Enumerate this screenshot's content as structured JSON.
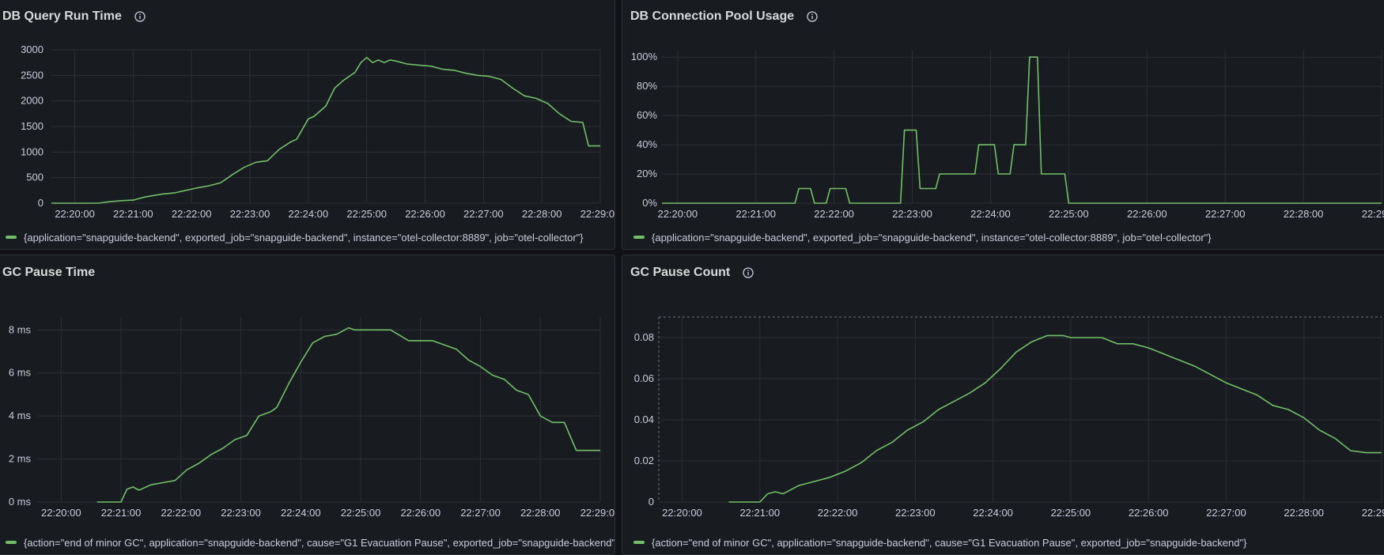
{
  "theme": {
    "background": "#111217",
    "panel_background": "#181b1f",
    "grid_color": "#2c3036",
    "series_color": "#73bf69",
    "text_color": "#ccccdc"
  },
  "x_ticks": [
    "22:20:00",
    "22:21:00",
    "22:22:00",
    "22:23:00",
    "22:24:00",
    "22:25:00",
    "22:26:00",
    "22:27:00",
    "22:28:00",
    "22:29:00"
  ],
  "panels": [
    {
      "title": "DB Query Run Time",
      "has_info_icon": true,
      "legend": "{application=\"snapguide-backend\", exported_job=\"snapguide-backend\", instance=\"otel-collector:8889\", job=\"otel-collector\"}"
    },
    {
      "title": "DB Connection Pool Usage",
      "has_info_icon": true,
      "legend": "{application=\"snapguide-backend\", exported_job=\"snapguide-backend\", instance=\"otel-collector:8889\", job=\"otel-collector\"}"
    },
    {
      "title": "GC Pause Time",
      "has_info_icon": false,
      "legend": "{action=\"end of minor GC\", application=\"snapguide-backend\", cause=\"G1 Evacuation Pause\", exported_job=\"snapguide-backend\"}"
    },
    {
      "title": "GC Pause Count",
      "has_info_icon": true,
      "legend": "{action=\"end of minor GC\", application=\"snapguide-backend\", cause=\"G1 Evacuation Pause\", exported_job=\"snapguide-backend\"}"
    }
  ],
  "chart_data": [
    {
      "type": "line",
      "title": "DB Query Run Time",
      "x_unit": "minutes after 22:20:00",
      "xlim": [
        -0.4,
        9
      ],
      "ylim": [
        0,
        3000
      ],
      "y_ticks": [
        "0",
        "500",
        "1000",
        "1500",
        "2000",
        "2500",
        "3000"
      ],
      "y_tick_values": [
        0,
        500,
        1000,
        1500,
        2000,
        2500,
        3000
      ],
      "grid": true,
      "series": [
        {
          "x": [
            -0.4,
            0.4,
            0.6,
            0.8,
            1.0,
            1.2,
            1.3,
            1.5,
            1.7,
            1.9,
            2.1,
            2.3,
            2.5,
            2.7,
            2.9,
            3.1,
            3.3,
            3.5,
            3.7,
            3.8,
            4.0,
            4.1,
            4.3,
            4.45,
            4.6,
            4.8,
            4.9,
            5.0,
            5.1,
            5.2,
            5.3,
            5.4,
            5.5,
            5.7,
            5.9,
            6.1,
            6.3,
            6.5,
            6.7,
            6.9,
            7.1,
            7.3,
            7.5,
            7.7,
            7.9,
            8.1,
            8.3,
            8.5,
            8.7,
            8.8,
            9.0
          ],
          "values": [
            0,
            0,
            30,
            50,
            60,
            120,
            140,
            180,
            200,
            250,
            300,
            340,
            400,
            560,
            700,
            800,
            830,
            1050,
            1200,
            1250,
            1650,
            1700,
            1900,
            2250,
            2400,
            2560,
            2750,
            2850,
            2750,
            2800,
            2750,
            2800,
            2780,
            2720,
            2700,
            2680,
            2620,
            2600,
            2540,
            2500,
            2480,
            2420,
            2250,
            2100,
            2050,
            1950,
            1750,
            1600,
            1580,
            1120,
            1120
          ]
        }
      ]
    },
    {
      "type": "line",
      "title": "DB Connection Pool Usage",
      "x_unit": "minutes after 22:20:00",
      "xlim": [
        -0.2,
        9
      ],
      "ylim": [
        0,
        105
      ],
      "y_ticks": [
        "0%",
        "20%",
        "40%",
        "60%",
        "80%",
        "100%"
      ],
      "y_tick_values": [
        0,
        20,
        40,
        60,
        80,
        100
      ],
      "grid": true,
      "series": [
        {
          "x": [
            -0.2,
            1.5,
            1.55,
            1.7,
            1.75,
            1.9,
            1.95,
            2.15,
            2.2,
            2.85,
            2.9,
            3.05,
            3.1,
            3.3,
            3.35,
            3.8,
            3.85,
            4.05,
            4.1,
            4.25,
            4.3,
            4.45,
            4.5,
            4.6,
            4.65,
            4.8,
            4.85,
            4.95,
            5.0,
            9.0
          ],
          "values": [
            0,
            0,
            10,
            10,
            0,
            0,
            10,
            10,
            0,
            0,
            50,
            50,
            10,
            10,
            20,
            20,
            40,
            40,
            20,
            20,
            40,
            40,
            100,
            100,
            20,
            20,
            20,
            20,
            0,
            0
          ]
        }
      ]
    },
    {
      "type": "line",
      "title": "GC Pause Time",
      "x_unit": "minutes after 22:20:00",
      "xlim": [
        -0.4,
        9
      ],
      "ylim": [
        0,
        8.6
      ],
      "y_ticks": [
        "0 ms",
        "2 ms",
        "4 ms",
        "6 ms",
        "8 ms"
      ],
      "y_tick_values": [
        0,
        2,
        4,
        6,
        8
      ],
      "grid": true,
      "series": [
        {
          "x": [
            0.6,
            1.0,
            1.1,
            1.2,
            1.3,
            1.5,
            1.7,
            1.9,
            2.1,
            2.3,
            2.5,
            2.7,
            2.9,
            3.1,
            3.3,
            3.5,
            3.6,
            3.8,
            4.0,
            4.2,
            4.4,
            4.6,
            4.8,
            4.9,
            5.0,
            5.1,
            5.3,
            5.5,
            5.8,
            6.0,
            6.2,
            6.4,
            6.6,
            6.8,
            7.0,
            7.2,
            7.4,
            7.6,
            7.8,
            8.0,
            8.2,
            8.4,
            8.6,
            8.8,
            9.0
          ],
          "values": [
            0,
            0,
            0.6,
            0.7,
            0.55,
            0.8,
            0.9,
            1.0,
            1.5,
            1.8,
            2.2,
            2.5,
            2.9,
            3.1,
            4.0,
            4.2,
            4.4,
            5.5,
            6.5,
            7.4,
            7.7,
            7.8,
            8.1,
            8.0,
            8.0,
            8.0,
            8.0,
            8.0,
            7.5,
            7.5,
            7.5,
            7.3,
            7.1,
            6.6,
            6.3,
            5.9,
            5.7,
            5.2,
            5.0,
            4.0,
            3.7,
            3.7,
            2.4,
            2.4,
            2.4
          ]
        }
      ]
    },
    {
      "type": "line",
      "title": "GC Pause Count",
      "x_unit": "minutes after 22:20:00",
      "xlim": [
        -0.3,
        9
      ],
      "ylim": [
        0,
        0.09
      ],
      "y_ticks": [
        "0",
        "0.02",
        "0.04",
        "0.06",
        "0.08"
      ],
      "y_tick_values": [
        0,
        0.02,
        0.04,
        0.06,
        0.08
      ],
      "grid": true,
      "series": [
        {
          "x": [
            0.6,
            1.0,
            1.1,
            1.2,
            1.3,
            1.5,
            1.7,
            1.9,
            2.1,
            2.3,
            2.5,
            2.7,
            2.9,
            3.1,
            3.3,
            3.5,
            3.7,
            3.9,
            4.1,
            4.3,
            4.5,
            4.7,
            4.9,
            5.0,
            5.2,
            5.4,
            5.6,
            5.8,
            6.0,
            6.2,
            6.4,
            6.6,
            6.8,
            7.0,
            7.2,
            7.4,
            7.6,
            7.8,
            8.0,
            8.2,
            8.4,
            8.6,
            8.8,
            9.0
          ],
          "values": [
            0,
            0,
            0.004,
            0.005,
            0.004,
            0.008,
            0.01,
            0.012,
            0.015,
            0.019,
            0.025,
            0.029,
            0.035,
            0.039,
            0.045,
            0.049,
            0.053,
            0.058,
            0.065,
            0.073,
            0.078,
            0.081,
            0.081,
            0.08,
            0.08,
            0.08,
            0.077,
            0.077,
            0.075,
            0.072,
            0.069,
            0.066,
            0.062,
            0.058,
            0.055,
            0.052,
            0.047,
            0.045,
            0.041,
            0.035,
            0.031,
            0.025,
            0.024,
            0.024
          ]
        }
      ]
    }
  ]
}
